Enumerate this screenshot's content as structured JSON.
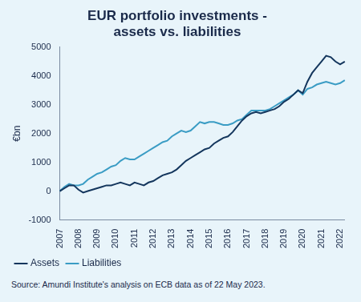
{
  "chart_data": {
    "type": "line",
    "title": [
      "EUR portfolio investments -",
      "assets vs. liabilities"
    ],
    "y_label": "€bn",
    "source": "Source: Amundi Institute's analysis on ECB data as of 22 May 2023.",
    "categories": [
      "2007",
      null,
      null,
      null,
      "2008",
      null,
      null,
      null,
      "2009",
      null,
      null,
      null,
      "2010",
      null,
      null,
      null,
      "2011",
      null,
      null,
      null,
      "2012",
      null,
      null,
      null,
      "2013",
      null,
      null,
      null,
      "2014",
      null,
      null,
      null,
      "2015",
      null,
      null,
      null,
      "2016",
      null,
      null,
      null,
      "2017",
      null,
      null,
      null,
      "2018",
      null,
      null,
      null,
      "2019",
      null,
      null,
      null,
      "2020",
      null,
      null,
      null,
      "2021",
      null,
      null,
      null,
      "2022",
      null
    ],
    "series": [
      {
        "name": "Assets",
        "color": "#14365d",
        "values": [
          0,
          100,
          200,
          200,
          50,
          -50,
          0,
          50,
          100,
          150,
          200,
          200,
          250,
          300,
          250,
          200,
          300,
          250,
          200,
          300,
          350,
          450,
          550,
          600,
          650,
          750,
          900,
          1050,
          1150,
          1250,
          1350,
          1450,
          1500,
          1650,
          1750,
          1850,
          1900,
          2050,
          2250,
          2450,
          2600,
          2700,
          2750,
          2700,
          2750,
          2800,
          2850,
          2950,
          3100,
          3200,
          3350,
          3500,
          3400,
          3800,
          4100,
          4300,
          4500,
          4700,
          4650,
          4500,
          4400,
          4500
        ]
      },
      {
        "name": "Liabilities",
        "color": "#3a9cc4",
        "values": [
          0,
          150,
          250,
          200,
          200,
          250,
          400,
          500,
          600,
          650,
          750,
          850,
          900,
          1050,
          1150,
          1100,
          1100,
          1200,
          1300,
          1400,
          1500,
          1600,
          1700,
          1750,
          1900,
          2000,
          2100,
          2050,
          2100,
          2250,
          2400,
          2350,
          2400,
          2400,
          2350,
          2300,
          2300,
          2350,
          2450,
          2500,
          2650,
          2800,
          2800,
          2800,
          2800,
          2850,
          2950,
          3050,
          3150,
          3250,
          3350,
          3500,
          3350,
          3550,
          3600,
          3700,
          3750,
          3800,
          3750,
          3700,
          3750,
          3850
        ]
      }
    ],
    "ylim": [
      -1000,
      5000
    ],
    "yticks": [
      -1000,
      0,
      1000,
      2000,
      3000,
      4000,
      5000
    ],
    "grid": false,
    "legend": "bottom"
  }
}
